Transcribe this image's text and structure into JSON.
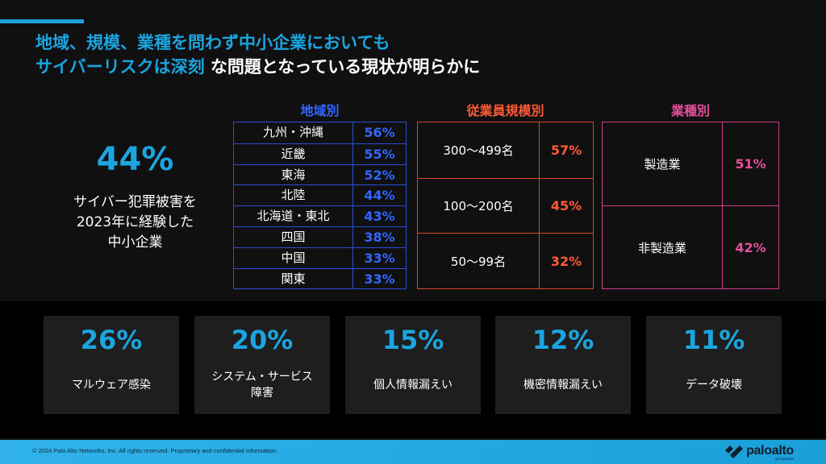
{
  "title": {
    "line1": "地域、規模、業種を問わず中小企業においても",
    "line2_blue": "サイバーリスクは深刻",
    "line2_white": " な問題となっている現状が明らかに"
  },
  "hero": {
    "percent": "44%",
    "label_lines": [
      "サイバー犯罪被害を",
      "2023年に経験した",
      "中小企業"
    ]
  },
  "region": {
    "heading": "地域別",
    "rows": [
      {
        "name": "九州・沖縄",
        "value": "56%"
      },
      {
        "name": "近畿",
        "value": "55%"
      },
      {
        "name": "東海",
        "value": "52%"
      },
      {
        "name": "北陸",
        "value": "44%"
      },
      {
        "name": "北海道・東北",
        "value": "43%"
      },
      {
        "name": "四国",
        "value": "38%"
      },
      {
        "name": "中国",
        "value": "33%"
      },
      {
        "name": "関東",
        "value": "33%"
      }
    ]
  },
  "size": {
    "heading": "従業員規模別",
    "rows": [
      {
        "name": "300～499名",
        "value": "57%"
      },
      {
        "name": "100～200名",
        "value": "45%"
      },
      {
        "name": "50～99名",
        "value": "32%"
      }
    ]
  },
  "industry": {
    "heading": "業種別",
    "rows": [
      {
        "name": "製造業",
        "value": "51%"
      },
      {
        "name": "非製造業",
        "value": "42%"
      }
    ]
  },
  "cards": [
    {
      "percent": "26%",
      "label_lines": [
        "マルウェア感染"
      ]
    },
    {
      "percent": "20%",
      "label_lines": [
        "システム・サービス",
        "障害"
      ]
    },
    {
      "percent": "15%",
      "label_lines": [
        "個人情報漏えい"
      ]
    },
    {
      "percent": "12%",
      "label_lines": [
        "機密情報漏えい"
      ]
    },
    {
      "percent": "11%",
      "label_lines": [
        "データ破壊"
      ]
    }
  ],
  "footer": {
    "copyright": "© 2024 Palo Alto Networks, Inc. All rights reserved. Proprietary and confidential information.",
    "logo_text": "paloalto",
    "logo_subtext": "NETWORKS"
  },
  "colors": {
    "accent_blue": "#1ba5e0",
    "region_blue": "#3366ff",
    "size_orange": "#ff5a36",
    "industry_pink": "#e64e9c"
  }
}
